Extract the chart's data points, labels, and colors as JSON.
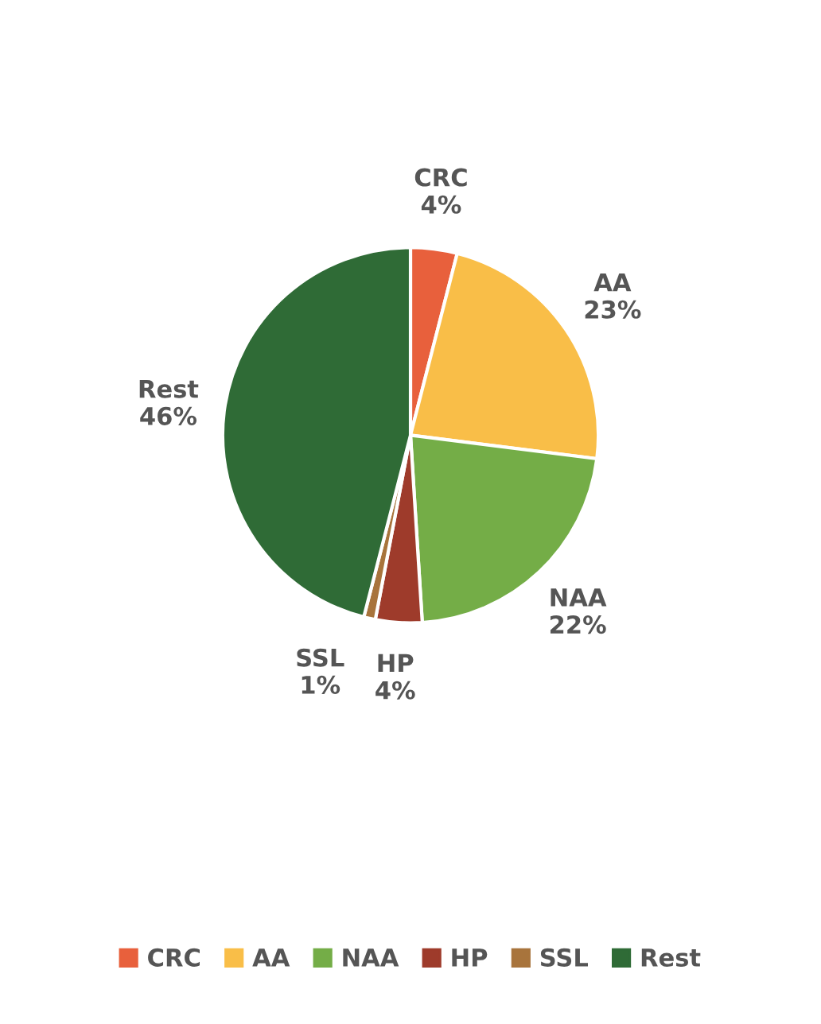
{
  "chart_data": {
    "type": "pie",
    "categories": [
      "CRC",
      "AA",
      "NAA",
      "HP",
      "SSL",
      "Rest"
    ],
    "values": [
      4,
      23,
      22,
      4,
      1,
      46
    ],
    "value_labels": [
      "4%",
      "23%",
      "22%",
      "4%",
      "1%",
      "46%"
    ],
    "colors": [
      "#e8603c",
      "#f9be48",
      "#74ad47",
      "#9e3b2b",
      "#a8743c",
      "#2f6b36"
    ],
    "legend": "bottom"
  }
}
